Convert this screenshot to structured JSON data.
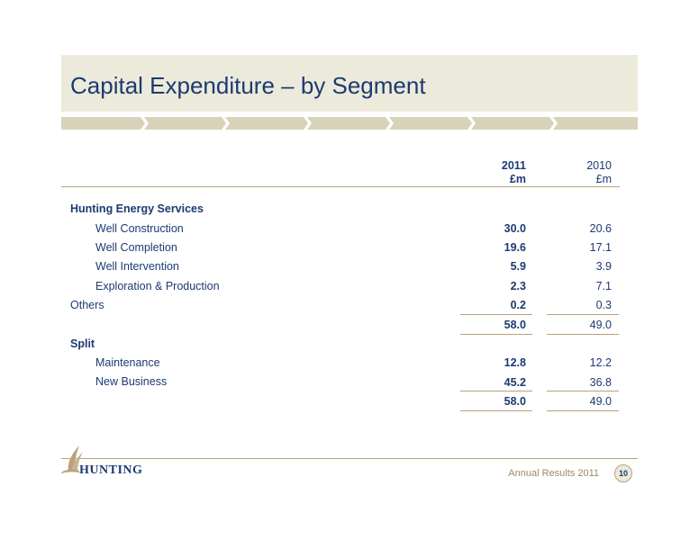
{
  "title": "Capital Expenditure – by Segment",
  "columns": [
    {
      "year": "2011",
      "unit": "£m"
    },
    {
      "year": "2010",
      "unit": "£m"
    }
  ],
  "sections": {
    "hunting_energy_services": "Hunting Energy Services",
    "split": "Split"
  },
  "rows": {
    "well_construction": {
      "label": "Well Construction",
      "v2011": "30.0",
      "v2010": "20.6"
    },
    "well_completion": {
      "label": "Well Completion",
      "v2011": "19.6",
      "v2010": "17.1"
    },
    "well_intervention": {
      "label": "Well Intervention",
      "v2011": "5.9",
      "v2010": "3.9"
    },
    "exploration_production": {
      "label": "Exploration & Production",
      "v2011": "2.3",
      "v2010": "7.1"
    },
    "others": {
      "label": "Others",
      "v2011": "0.2",
      "v2010": "0.3"
    },
    "total_segment": {
      "v2011": "58.0",
      "v2010": "49.0"
    },
    "maintenance": {
      "label": "Maintenance",
      "v2011": "12.8",
      "v2010": "12.2"
    },
    "new_business": {
      "label": "New Business",
      "v2011": "45.2",
      "v2010": "36.8"
    },
    "total_split": {
      "v2011": "58.0",
      "v2010": "49.0"
    }
  },
  "footer": {
    "logo_text": "HUNTING",
    "label": "Annual Results 2011",
    "page_number": "10"
  },
  "colors": {
    "navy": "#1c3a72",
    "band": "#eceadb",
    "gold": "#b9a27c"
  }
}
